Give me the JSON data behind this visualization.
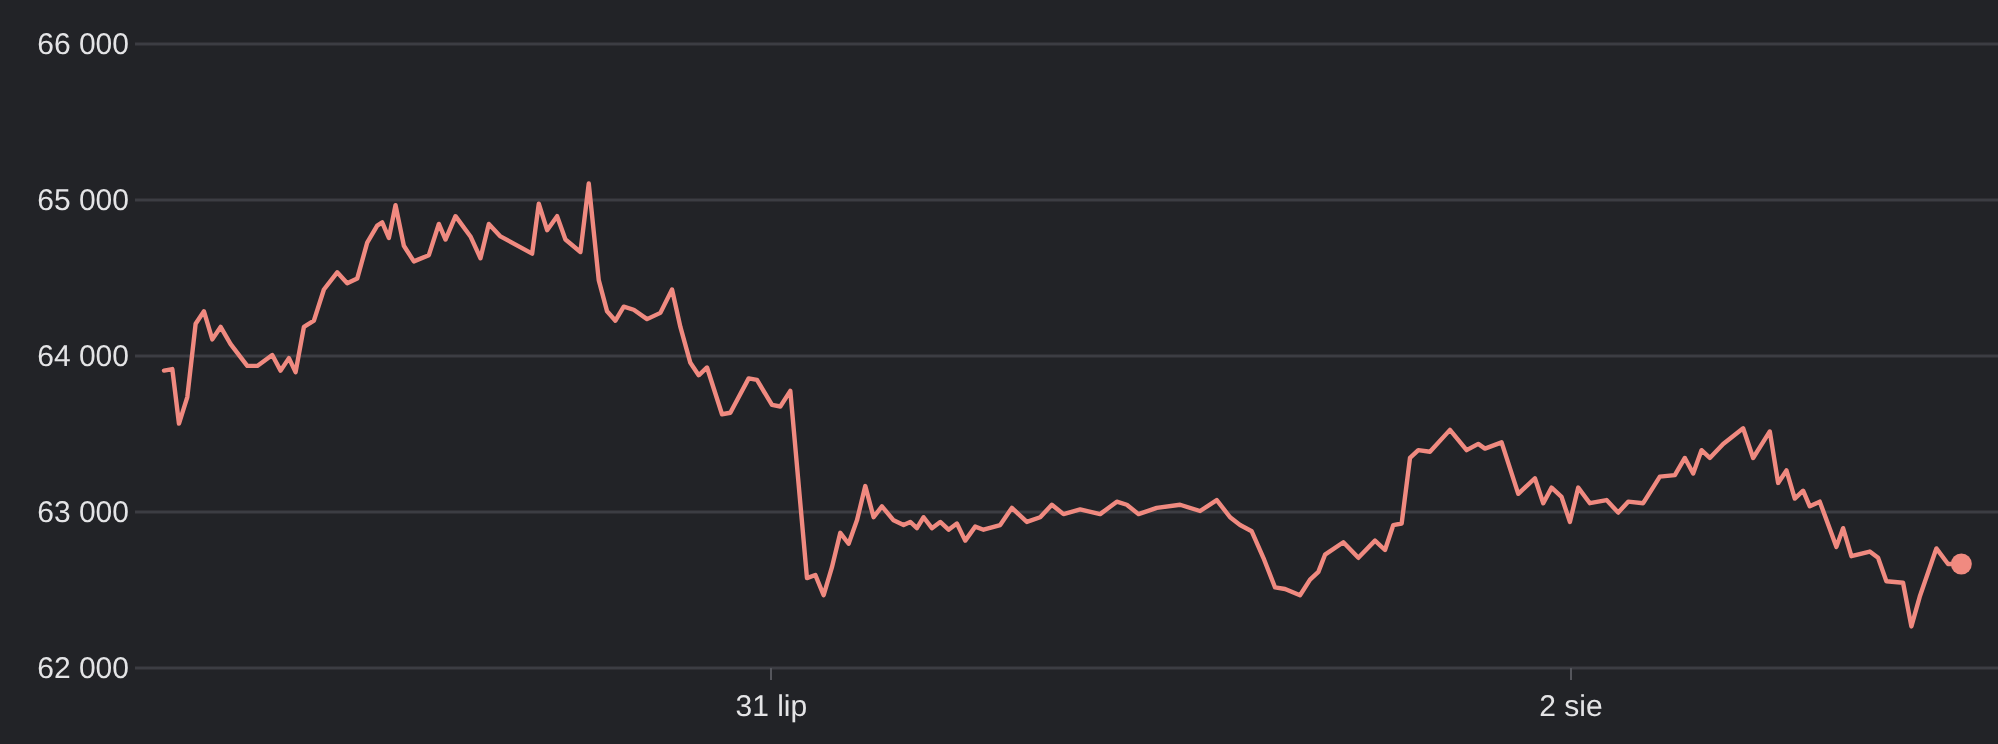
{
  "chart_data": {
    "type": "line",
    "x": [
      "--07-29T11:36",
      "--07-29T12:06",
      "--07-29T12:30",
      "--07-29T13:00",
      "--07-29T13:30",
      "--07-29T14:00",
      "--07-29T14:30",
      "--07-29T15:00",
      "--07-29T15:36",
      "--07-29T16:36",
      "--07-29T17:12",
      "--07-29T18:06",
      "--07-29T18:36",
      "--07-29T19:06",
      "--07-29T19:30",
      "--07-29T20:00",
      "--07-29T20:36",
      "--07-29T21:12",
      "--07-29T22:00",
      "--07-29T22:36",
      "--07-29T23:12",
      "--07-29T23:48",
      "--07-30T00:24",
      "--07-30T00:42",
      "--07-30T01:06",
      "--07-30T01:30",
      "--07-30T02:00",
      "--07-30T02:36",
      "--07-30T03:30",
      "--07-30T04:06",
      "--07-30T04:30",
      "--07-30T05:06",
      "--07-30T06:00",
      "--07-30T06:36",
      "--07-30T07:06",
      "--07-30T07:48",
      "--07-30T09:42",
      "--07-30T10:06",
      "--07-30T10:36",
      "--07-30T11:12",
      "--07-30T11:42",
      "--07-30T12:36",
      "--07-30T13:06",
      "--07-30T13:42",
      "--07-30T14:12",
      "--07-30T14:42",
      "--07-30T15:12",
      "--07-30T15:48",
      "--07-30T16:36",
      "--07-30T17:24",
      "--07-30T18:06",
      "--07-30T18:36",
      "--07-30T19:12",
      "--07-30T19:42",
      "--07-30T20:12",
      "--07-30T21:06",
      "--07-30T21:36",
      "--07-30T22:42",
      "--07-30T23:12",
      "--07-31T00:06",
      "--07-31T00:36",
      "--07-31T01:12",
      "--07-31T02:12",
      "--07-31T02:42",
      "--07-31T03:12",
      "--07-31T03:42",
      "--07-31T04:12",
      "--07-31T04:42",
      "--07-31T05:12",
      "--07-31T05:42",
      "--07-31T06:12",
      "--07-31T06:42",
      "--07-31T07:24",
      "--07-31T08:00",
      "--07-31T08:24",
      "--07-31T08:48",
      "--07-31T09:12",
      "--07-31T09:42",
      "--07-31T10:12",
      "--07-31T10:42",
      "--07-31T11:12",
      "--07-31T11:42",
      "--07-31T12:18",
      "--07-31T12:48",
      "--07-31T13:48",
      "--07-31T14:30",
      "--07-31T15:24",
      "--07-31T16:12",
      "--07-31T16:54",
      "--07-31T17:36",
      "--07-31T18:36",
      "--07-31T19:48",
      "--07-31T20:48",
      "--07-31T21:24",
      "--07-31T22:06",
      "--07-31T23:12",
      "--08-01T00:36",
      "--08-01T01:48",
      "--08-01T02:48",
      "--08-01T03:36",
      "--08-01T04:12",
      "--08-01T04:54",
      "--08-01T05:36",
      "--08-01T06:18",
      "--08-01T06:54",
      "--08-01T07:48",
      "--08-01T08:24",
      "--08-01T08:54",
      "--08-01T09:18",
      "--08-01T10:24",
      "--08-01T11:18",
      "--08-01T12:18",
      "--08-01T12:54",
      "--08-01T13:24",
      "--08-01T13:54",
      "--08-01T14:24",
      "--08-01T14:54",
      "--08-01T15:36",
      "--08-01T16:48",
      "--08-01T17:48",
      "--08-01T18:30",
      "--08-01T18:54",
      "--08-01T19:54",
      "--08-01T20:54",
      "--08-01T21:54",
      "--08-01T22:24",
      "--08-01T22:54",
      "--08-01T23:30",
      "--08-02T00:00",
      "--08-02T00:30",
      "--08-02T01:12",
      "--08-02T02:12",
      "--08-02T02:54",
      "--08-02T03:30",
      "--08-02T04:24",
      "--08-02T05:24",
      "--08-02T06:18",
      "--08-02T06:54",
      "--08-02T07:24",
      "--08-02T07:54",
      "--08-02T08:24",
      "--08-02T09:12",
      "--08-02T10:24",
      "--08-02T11:00",
      "--08-02T12:00",
      "--08-02T12:30",
      "--08-02T13:00",
      "--08-02T13:30",
      "--08-02T14:00",
      "--08-02T14:24",
      "--08-02T15:00",
      "--08-02T16:00",
      "--08-02T16:24",
      "--08-02T16:54",
      "--08-02T18:00",
      "--08-02T18:30",
      "--08-02T19:00",
      "--08-02T20:00",
      "--08-02T20:30",
      "--08-02T21:00",
      "--08-02T22:00",
      "--08-02T22:42",
      "--08-02T23:30"
    ],
    "series": [
      {
        "color": "#f08a80",
        "values": [
          63900,
          63910,
          63560,
          63730,
          64200,
          64280,
          64100,
          64180,
          64070,
          63930,
          63930,
          64000,
          63900,
          63980,
          63890,
          64180,
          64220,
          64420,
          64530,
          64460,
          64490,
          64720,
          64830,
          64850,
          64750,
          64960,
          64700,
          64600,
          64640,
          64840,
          64740,
          64890,
          64760,
          64620,
          64840,
          64760,
          64650,
          64970,
          64800,
          64890,
          64740,
          64660,
          65100,
          64480,
          64280,
          64220,
          64310,
          64290,
          64230,
          64270,
          64420,
          64180,
          63950,
          63870,
          63920,
          63620,
          63630,
          63850,
          63840,
          63680,
          63670,
          63770,
          62570,
          62590,
          62460,
          62640,
          62860,
          62790,
          62940,
          63160,
          62960,
          63030,
          62940,
          62910,
          62930,
          62890,
          62960,
          62890,
          62930,
          62880,
          62920,
          62810,
          62900,
          62880,
          62910,
          63020,
          62930,
          62960,
          63040,
          62980,
          63010,
          62980,
          63060,
          63040,
          62980,
          63020,
          63040,
          63000,
          63070,
          62960,
          62910,
          62870,
          62700,
          62510,
          62500,
          62460,
          62560,
          62610,
          62720,
          62800,
          62700,
          62810,
          62750,
          62910,
          62920,
          63340,
          63390,
          63380,
          63520,
          63390,
          63430,
          63400,
          63440,
          63110,
          63210,
          63050,
          63150,
          63090,
          62930,
          63150,
          63050,
          63070,
          62990,
          63060,
          63050,
          63220,
          63230,
          63340,
          63240,
          63390,
          63340,
          63430,
          63530,
          63340,
          63510,
          63180,
          63260,
          63080,
          63130,
          63030,
          63060,
          62770,
          62890,
          62710,
          62740,
          62700,
          62550,
          62540,
          62260,
          62450,
          62760,
          62660,
          62660
        ]
      },
      {
        "type": "scatter",
        "color": "#f08a80",
        "x": [
          "--08-02T23:30"
        ],
        "values": [
          62660
        ]
      }
    ],
    "xlim": [
      "--07-29T09:48",
      "--08-03T01:42"
    ],
    "xticks": [
      {
        "value": "--07-31",
        "label": "31 lip"
      },
      {
        "value": "--08-02",
        "label": "2 sie"
      }
    ],
    "ylim": [
      62000,
      66000
    ],
    "yticks": [
      {
        "value": 62000,
        "label": "62 000"
      },
      {
        "value": 63000,
        "label": "63 000"
      },
      {
        "value": 64000,
        "label": "64 000"
      },
      {
        "value": 65000,
        "label": "65 000"
      },
      {
        "value": 66000,
        "label": "66 000"
      }
    ],
    "grid": "y"
  }
}
